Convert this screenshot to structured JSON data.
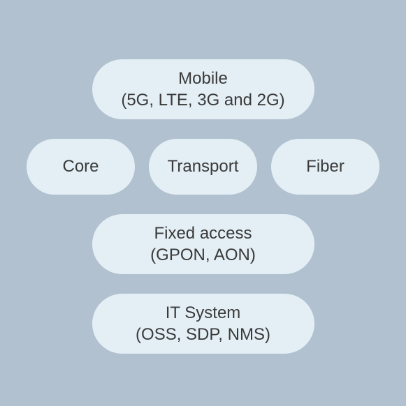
{
  "diagram": {
    "type": "infographic",
    "background_color": "#b2c1d0",
    "pill_background": "#e4eff5",
    "text_color": "#3a3a3a",
    "font_size": 24,
    "rows": [
      {
        "pills": [
          {
            "line1": "Mobile",
            "line2": "(5G, LTE, 3G and 2G)",
            "size": "wide"
          }
        ]
      },
      {
        "pills": [
          {
            "line1": "Core",
            "line2": "",
            "size": "small"
          },
          {
            "line1": "Transport",
            "line2": "",
            "size": "small"
          },
          {
            "line1": "Fiber",
            "line2": "",
            "size": "small"
          }
        ]
      },
      {
        "pills": [
          {
            "line1": "Fixed access",
            "line2": "(GPON, AON)",
            "size": "wide"
          }
        ]
      },
      {
        "pills": [
          {
            "line1": "IT System",
            "line2": "(OSS, SDP, NMS)",
            "size": "wide"
          }
        ]
      }
    ]
  }
}
